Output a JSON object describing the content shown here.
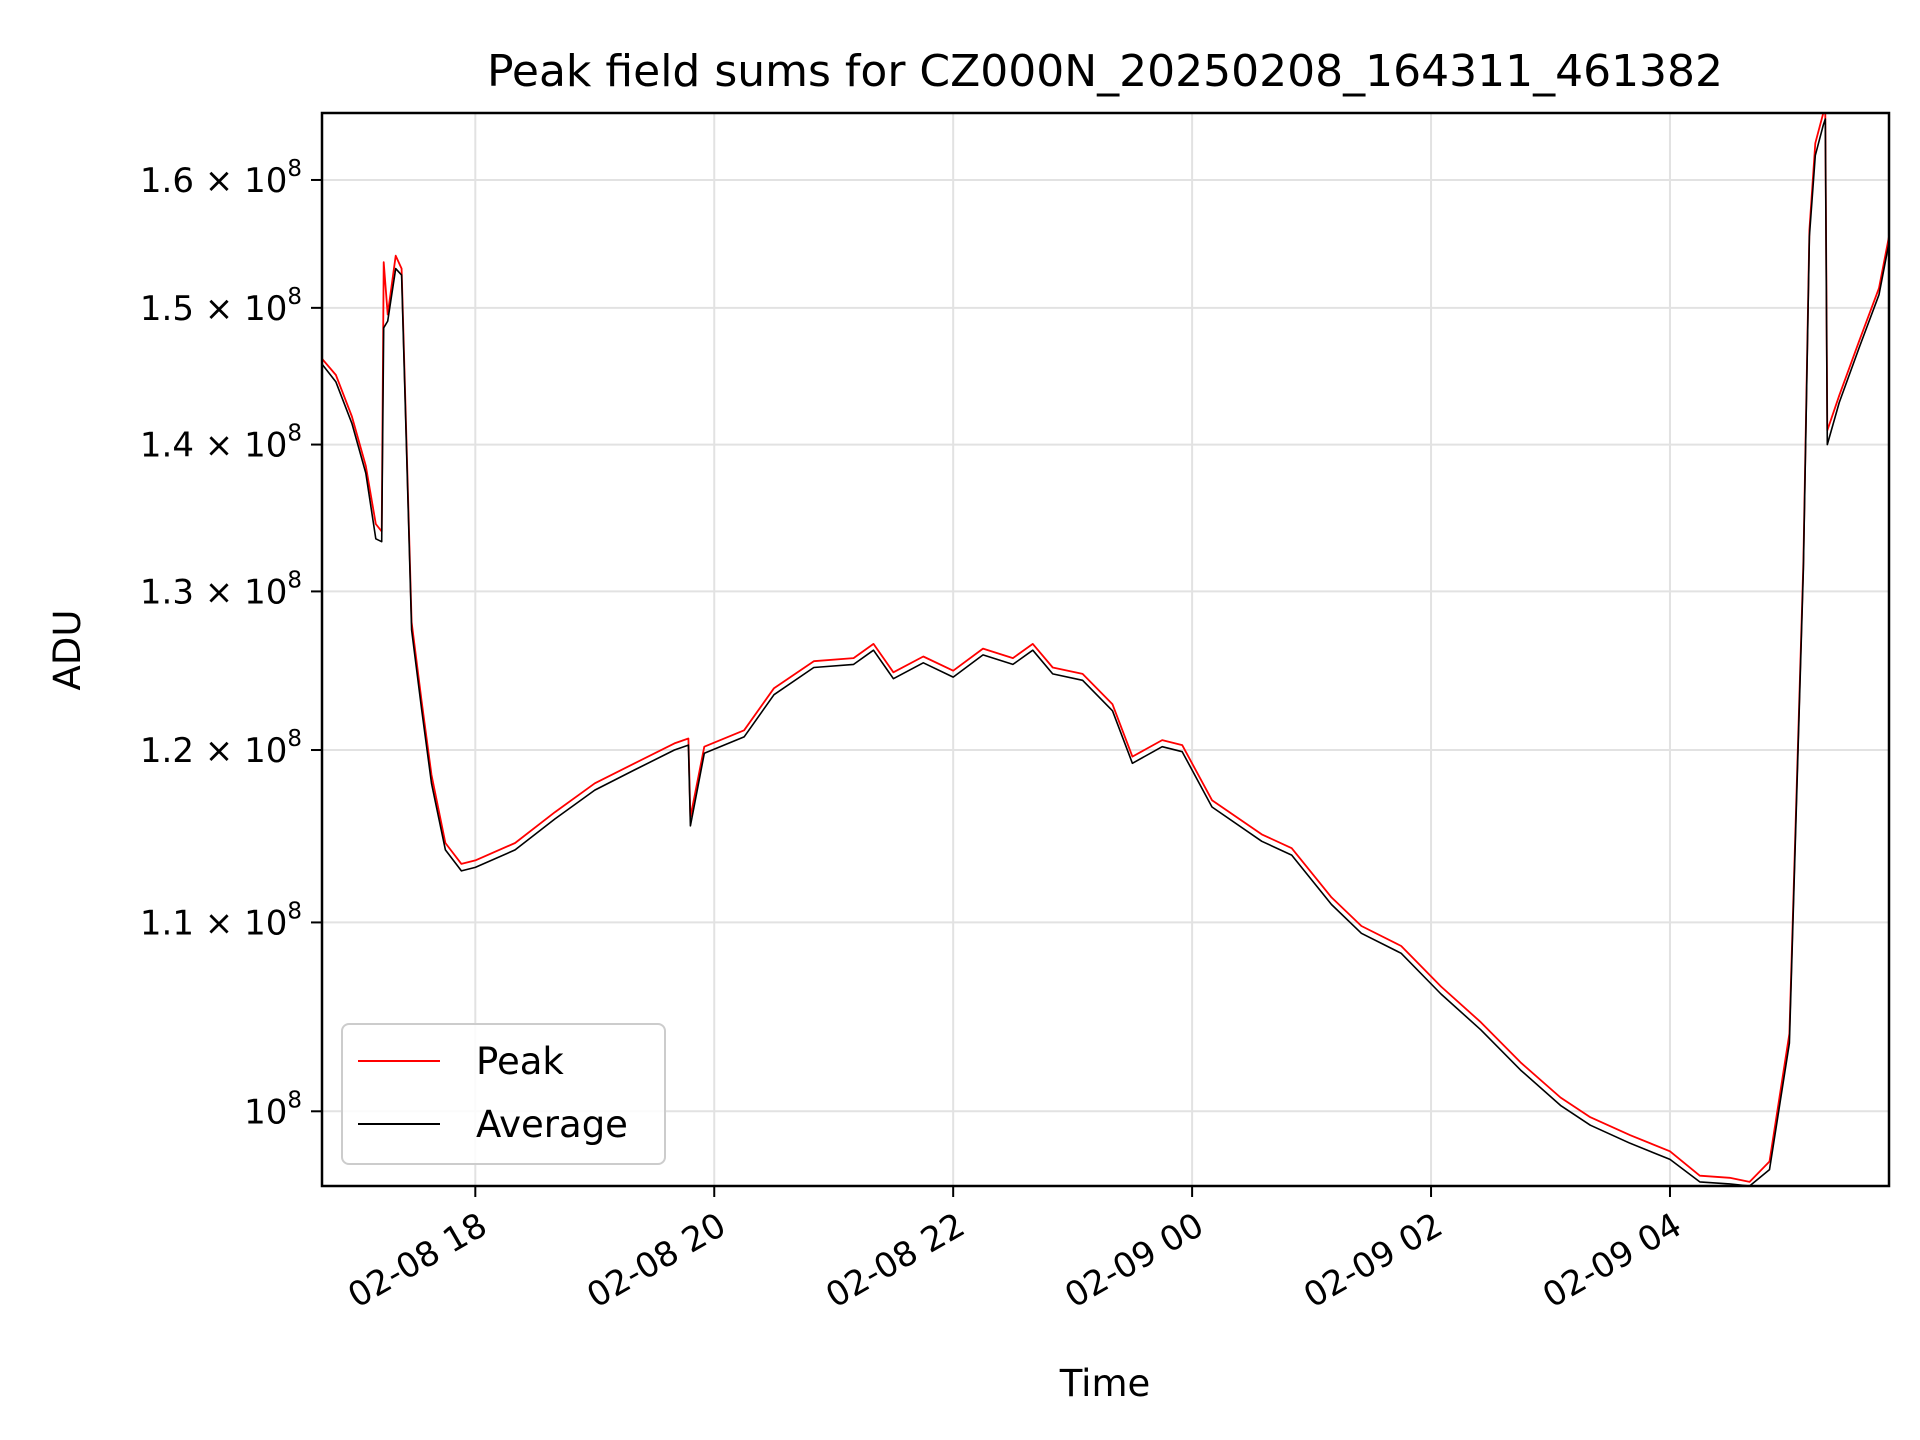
{
  "chart_data": {
    "type": "line",
    "title": "Peak field sums for CZ000N_20250208_164311_461382",
    "xlabel": "Time",
    "ylabel": "ADU",
    "yscale": "log",
    "grid": true,
    "legend_position": "lower-left",
    "xlim": [
      "2025-02-08 16:43",
      "2025-02-09 05:50"
    ],
    "ylim": [
      96300000,
      165500000
    ],
    "x_ticks": [
      {
        "x": "2025-02-08 18:00",
        "label": "02-08 18"
      },
      {
        "x": "2025-02-08 20:00",
        "label": "02-08 20"
      },
      {
        "x": "2025-02-08 22:00",
        "label": "02-08 22"
      },
      {
        "x": "2025-02-09 00:00",
        "label": "02-09 00"
      },
      {
        "x": "2025-02-09 02:00",
        "label": "02-09 02"
      },
      {
        "x": "2025-02-09 04:00",
        "label": "02-09 04"
      }
    ],
    "y_ticks": [
      {
        "value": 100000000,
        "mantissa": "",
        "base": "10",
        "exp": "8"
      },
      {
        "value": 110000000,
        "mantissa": "1.1 × ",
        "base": "10",
        "exp": "8"
      },
      {
        "value": 120000000,
        "mantissa": "1.2 × ",
        "base": "10",
        "exp": "8"
      },
      {
        "value": 130000000,
        "mantissa": "1.3 × ",
        "base": "10",
        "exp": "8"
      },
      {
        "value": 140000000,
        "mantissa": "1.4 × ",
        "base": "10",
        "exp": "8"
      },
      {
        "value": 150000000,
        "mantissa": "1.5 × ",
        "base": "10",
        "exp": "8"
      },
      {
        "value": 160000000,
        "mantissa": "1.6 × ",
        "base": "10",
        "exp": "8"
      }
    ],
    "series": [
      {
        "name": "Peak",
        "color": "#ff0000",
        "points": [
          [
            "2025-02-08 16:43",
            146200000
          ],
          [
            "2025-02-08 16:50",
            145000000
          ],
          [
            "2025-02-08 16:58",
            142000000
          ],
          [
            "2025-02-08 17:05",
            138500000
          ],
          [
            "2025-02-08 17:10",
            134500000
          ],
          [
            "2025-02-08 17:13",
            134000000
          ],
          [
            "2025-02-08 17:14",
            153500000
          ],
          [
            "2025-02-08 17:16",
            149500000
          ],
          [
            "2025-02-08 17:20",
            154000000
          ],
          [
            "2025-02-08 17:23",
            153000000
          ],
          [
            "2025-02-08 17:28",
            128000000
          ],
          [
            "2025-02-08 17:33",
            123000000
          ],
          [
            "2025-02-08 17:38",
            118500000
          ],
          [
            "2025-02-08 17:45",
            114500000
          ],
          [
            "2025-02-08 17:53",
            113300000
          ],
          [
            "2025-02-08 18:00",
            113500000
          ],
          [
            "2025-02-08 18:20",
            114500000
          ],
          [
            "2025-02-08 18:40",
            116300000
          ],
          [
            "2025-02-08 19:00",
            118000000
          ],
          [
            "2025-02-08 19:20",
            119200000
          ],
          [
            "2025-02-08 19:40",
            120400000
          ],
          [
            "2025-02-08 19:47",
            120700000
          ],
          [
            "2025-02-08 19:48",
            116000000
          ],
          [
            "2025-02-08 19:55",
            120200000
          ],
          [
            "2025-02-08 20:15",
            121200000
          ],
          [
            "2025-02-08 20:30",
            123800000
          ],
          [
            "2025-02-08 20:50",
            125500000
          ],
          [
            "2025-02-08 21:10",
            125700000
          ],
          [
            "2025-02-08 21:20",
            126600000
          ],
          [
            "2025-02-08 21:30",
            124800000
          ],
          [
            "2025-02-08 21:45",
            125800000
          ],
          [
            "2025-02-08 22:00",
            124900000
          ],
          [
            "2025-02-08 22:15",
            126300000
          ],
          [
            "2025-02-08 22:30",
            125700000
          ],
          [
            "2025-02-08 22:40",
            126600000
          ],
          [
            "2025-02-08 22:50",
            125100000
          ],
          [
            "2025-02-08 23:05",
            124700000
          ],
          [
            "2025-02-08 23:20",
            122800000
          ],
          [
            "2025-02-08 23:30",
            119600000
          ],
          [
            "2025-02-08 23:45",
            120600000
          ],
          [
            "2025-02-08 23:55",
            120300000
          ],
          [
            "2025-02-09 00:10",
            117000000
          ],
          [
            "2025-02-09 00:35",
            115000000
          ],
          [
            "2025-02-09 00:50",
            114200000
          ],
          [
            "2025-02-09 01:10",
            111400000
          ],
          [
            "2025-02-09 01:25",
            109800000
          ],
          [
            "2025-02-09 01:45",
            108700000
          ],
          [
            "2025-02-09 02:05",
            106500000
          ],
          [
            "2025-02-09 02:25",
            104600000
          ],
          [
            "2025-02-09 02:45",
            102500000
          ],
          [
            "2025-02-09 03:05",
            100700000
          ],
          [
            "2025-02-09 03:20",
            99700000
          ],
          [
            "2025-02-09 03:40",
            98800000
          ],
          [
            "2025-02-09 04:00",
            98000000
          ],
          [
            "2025-02-09 04:15",
            96800000
          ],
          [
            "2025-02-09 04:30",
            96700000
          ],
          [
            "2025-02-09 04:40",
            96500000
          ],
          [
            "2025-02-09 04:50",
            97500000
          ],
          [
            "2025-02-09 05:00",
            104000000
          ],
          [
            "2025-02-09 05:07",
            132000000
          ],
          [
            "2025-02-09 05:10",
            156000000
          ],
          [
            "2025-02-09 05:13",
            163000000
          ],
          [
            "2025-02-09 05:17",
            165500000
          ],
          [
            "2025-02-09 05:18",
            165500000
          ],
          [
            "2025-02-09 05:19",
            141000000
          ],
          [
            "2025-02-09 05:25",
            143500000
          ],
          [
            "2025-02-09 05:35",
            147500000
          ],
          [
            "2025-02-09 05:45",
            151500000
          ],
          [
            "2025-02-09 05:50",
            155500000
          ]
        ]
      },
      {
        "name": "Average",
        "color": "#000000",
        "points": [
          [
            "2025-02-08 16:43",
            145800000
          ],
          [
            "2025-02-08 16:50",
            144500000
          ],
          [
            "2025-02-08 16:58",
            141500000
          ],
          [
            "2025-02-08 17:05",
            138000000
          ],
          [
            "2025-02-08 17:10",
            133500000
          ],
          [
            "2025-02-08 17:13",
            133300000
          ],
          [
            "2025-02-08 17:14",
            148500000
          ],
          [
            "2025-02-08 17:16",
            149000000
          ],
          [
            "2025-02-08 17:20",
            153000000
          ],
          [
            "2025-02-08 17:23",
            152500000
          ],
          [
            "2025-02-08 17:28",
            127500000
          ],
          [
            "2025-02-08 17:33",
            122500000
          ],
          [
            "2025-02-08 17:38",
            118000000
          ],
          [
            "2025-02-08 17:45",
            114100000
          ],
          [
            "2025-02-08 17:53",
            112900000
          ],
          [
            "2025-02-08 18:00",
            113100000
          ],
          [
            "2025-02-08 18:20",
            114100000
          ],
          [
            "2025-02-08 18:40",
            115900000
          ],
          [
            "2025-02-08 19:00",
            117600000
          ],
          [
            "2025-02-08 19:20",
            118800000
          ],
          [
            "2025-02-08 19:40",
            120000000
          ],
          [
            "2025-02-08 19:47",
            120300000
          ],
          [
            "2025-02-08 19:48",
            115500000
          ],
          [
            "2025-02-08 19:55",
            119800000
          ],
          [
            "2025-02-08 20:15",
            120800000
          ],
          [
            "2025-02-08 20:30",
            123400000
          ],
          [
            "2025-02-08 20:50",
            125100000
          ],
          [
            "2025-02-08 21:10",
            125300000
          ],
          [
            "2025-02-08 21:20",
            126200000
          ],
          [
            "2025-02-08 21:30",
            124400000
          ],
          [
            "2025-02-08 21:45",
            125400000
          ],
          [
            "2025-02-08 22:00",
            124500000
          ],
          [
            "2025-02-08 22:15",
            125900000
          ],
          [
            "2025-02-08 22:30",
            125300000
          ],
          [
            "2025-02-08 22:40",
            126200000
          ],
          [
            "2025-02-08 22:50",
            124700000
          ],
          [
            "2025-02-08 23:05",
            124300000
          ],
          [
            "2025-02-08 23:20",
            122400000
          ],
          [
            "2025-02-08 23:30",
            119200000
          ],
          [
            "2025-02-08 23:45",
            120200000
          ],
          [
            "2025-02-08 23:55",
            119900000
          ],
          [
            "2025-02-09 00:10",
            116600000
          ],
          [
            "2025-02-09 00:35",
            114600000
          ],
          [
            "2025-02-09 00:50",
            113800000
          ],
          [
            "2025-02-09 01:10",
            111000000
          ],
          [
            "2025-02-09 01:25",
            109400000
          ],
          [
            "2025-02-09 01:45",
            108300000
          ],
          [
            "2025-02-09 02:05",
            106100000
          ],
          [
            "2025-02-09 02:25",
            104200000
          ],
          [
            "2025-02-09 02:45",
            102100000
          ],
          [
            "2025-02-09 03:05",
            100300000
          ],
          [
            "2025-02-09 03:20",
            99300000
          ],
          [
            "2025-02-09 03:40",
            98400000
          ],
          [
            "2025-02-09 04:00",
            97600000
          ],
          [
            "2025-02-09 04:15",
            96500000
          ],
          [
            "2025-02-09 04:30",
            96400000
          ],
          [
            "2025-02-09 04:40",
            96300000
          ],
          [
            "2025-02-09 04:50",
            97100000
          ],
          [
            "2025-02-09 05:00",
            103500000
          ],
          [
            "2025-02-09 05:07",
            131500000
          ],
          [
            "2025-02-09 05:10",
            155500000
          ],
          [
            "2025-02-09 05:13",
            162000000
          ],
          [
            "2025-02-09 05:17",
            164500000
          ],
          [
            "2025-02-09 05:18",
            165000000
          ],
          [
            "2025-02-09 05:19",
            140000000
          ],
          [
            "2025-02-09 05:25",
            143000000
          ],
          [
            "2025-02-09 05:35",
            147000000
          ],
          [
            "2025-02-09 05:45",
            151000000
          ],
          [
            "2025-02-09 05:50",
            155000000
          ]
        ]
      }
    ]
  }
}
